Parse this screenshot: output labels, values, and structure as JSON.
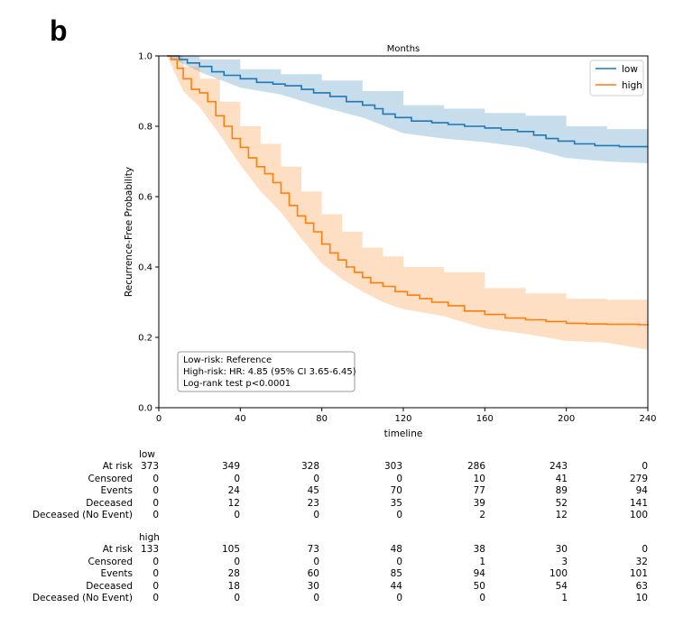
{
  "panel_label": "b",
  "chart_data": {
    "type": "line",
    "title": "Months",
    "xlabel": "timeline",
    "ylabel": "Recurrence-Free Probability",
    "xlim": [
      0,
      240
    ],
    "ylim": [
      0,
      1
    ],
    "xticks": [
      0,
      40,
      80,
      120,
      160,
      200,
      240
    ],
    "xtick_labels": [
      "0",
      "40",
      "80",
      "120",
      "160",
      "200",
      "240"
    ],
    "yticks": [
      0,
      0.2,
      0.4,
      0.6,
      0.8,
      1.0
    ],
    "ytick_labels": [
      "0.0",
      "0.2",
      "0.4",
      "0.6",
      "0.8",
      "1.0"
    ],
    "legend_position": "top-right",
    "series": [
      {
        "name": "low",
        "color": "#1f77b4",
        "ci_color": "#1f77b4",
        "points": [
          [
            4,
            1.0
          ],
          [
            10,
            0.99
          ],
          [
            14,
            0.98
          ],
          [
            20,
            0.97
          ],
          [
            26,
            0.955
          ],
          [
            32,
            0.945
          ],
          [
            40,
            0.935
          ],
          [
            48,
            0.925
          ],
          [
            56,
            0.92
          ],
          [
            62,
            0.915
          ],
          [
            70,
            0.905
          ],
          [
            76,
            0.895
          ],
          [
            84,
            0.885
          ],
          [
            92,
            0.87
          ],
          [
            100,
            0.86
          ],
          [
            106,
            0.85
          ],
          [
            110,
            0.835
          ],
          [
            116,
            0.825
          ],
          [
            124,
            0.815
          ],
          [
            134,
            0.81
          ],
          [
            142,
            0.805
          ],
          [
            150,
            0.8
          ],
          [
            160,
            0.795
          ],
          [
            168,
            0.79
          ],
          [
            176,
            0.785
          ],
          [
            184,
            0.775
          ],
          [
            190,
            0.765
          ],
          [
            196,
            0.758
          ],
          [
            204,
            0.75
          ],
          [
            214,
            0.745
          ],
          [
            226,
            0.742
          ],
          [
            240,
            0.742
          ]
        ],
        "ci_lower": [
          [
            4,
            1.0
          ],
          [
            20,
            0.955
          ],
          [
            40,
            0.91
          ],
          [
            60,
            0.89
          ],
          [
            80,
            0.855
          ],
          [
            100,
            0.825
          ],
          [
            120,
            0.78
          ],
          [
            140,
            0.765
          ],
          [
            160,
            0.755
          ],
          [
            180,
            0.74
          ],
          [
            200,
            0.71
          ],
          [
            220,
            0.7
          ],
          [
            240,
            0.695
          ]
        ],
        "ci_upper": [
          [
            4,
            1.0
          ],
          [
            20,
            0.99
          ],
          [
            40,
            0.962
          ],
          [
            60,
            0.948
          ],
          [
            80,
            0.93
          ],
          [
            100,
            0.9
          ],
          [
            120,
            0.86
          ],
          [
            140,
            0.85
          ],
          [
            160,
            0.838
          ],
          [
            180,
            0.83
          ],
          [
            200,
            0.8
          ],
          [
            220,
            0.792
          ],
          [
            240,
            0.79
          ]
        ]
      },
      {
        "name": "high",
        "color": "#ff7f0e",
        "ci_color": "#ff7f0e",
        "points": [
          [
            4,
            1.0
          ],
          [
            6,
            0.99
          ],
          [
            9,
            0.965
          ],
          [
            12,
            0.935
          ],
          [
            16,
            0.905
          ],
          [
            20,
            0.895
          ],
          [
            24,
            0.87
          ],
          [
            28,
            0.83
          ],
          [
            32,
            0.8
          ],
          [
            36,
            0.765
          ],
          [
            40,
            0.74
          ],
          [
            44,
            0.71
          ],
          [
            48,
            0.685
          ],
          [
            52,
            0.665
          ],
          [
            56,
            0.64
          ],
          [
            60,
            0.61
          ],
          [
            64,
            0.575
          ],
          [
            68,
            0.545
          ],
          [
            72,
            0.525
          ],
          [
            76,
            0.5
          ],
          [
            80,
            0.465
          ],
          [
            84,
            0.44
          ],
          [
            88,
            0.42
          ],
          [
            92,
            0.4
          ],
          [
            96,
            0.385
          ],
          [
            100,
            0.37
          ],
          [
            104,
            0.355
          ],
          [
            110,
            0.345
          ],
          [
            116,
            0.33
          ],
          [
            122,
            0.32
          ],
          [
            128,
            0.31
          ],
          [
            134,
            0.3
          ],
          [
            142,
            0.29
          ],
          [
            150,
            0.275
          ],
          [
            160,
            0.265
          ],
          [
            170,
            0.255
          ],
          [
            180,
            0.25
          ],
          [
            190,
            0.245
          ],
          [
            200,
            0.24
          ],
          [
            210,
            0.238
          ],
          [
            220,
            0.237
          ],
          [
            236,
            0.236
          ],
          [
            240,
            0.234
          ]
        ],
        "ci_lower": [
          [
            4,
            1.0
          ],
          [
            12,
            0.9
          ],
          [
            20,
            0.855
          ],
          [
            30,
            0.775
          ],
          [
            40,
            0.69
          ],
          [
            50,
            0.615
          ],
          [
            60,
            0.555
          ],
          [
            70,
            0.48
          ],
          [
            80,
            0.41
          ],
          [
            90,
            0.365
          ],
          [
            100,
            0.33
          ],
          [
            110,
            0.3
          ],
          [
            120,
            0.28
          ],
          [
            140,
            0.26
          ],
          [
            160,
            0.225
          ],
          [
            180,
            0.21
          ],
          [
            200,
            0.19
          ],
          [
            220,
            0.185
          ],
          [
            240,
            0.165
          ]
        ],
        "ci_upper": [
          [
            4,
            1.0
          ],
          [
            12,
            0.97
          ],
          [
            20,
            0.935
          ],
          [
            30,
            0.87
          ],
          [
            40,
            0.8
          ],
          [
            50,
            0.75
          ],
          [
            60,
            0.685
          ],
          [
            70,
            0.615
          ],
          [
            80,
            0.55
          ],
          [
            90,
            0.5
          ],
          [
            100,
            0.455
          ],
          [
            110,
            0.43
          ],
          [
            120,
            0.4
          ],
          [
            140,
            0.385
          ],
          [
            160,
            0.34
          ],
          [
            180,
            0.325
          ],
          [
            200,
            0.31
          ],
          [
            220,
            0.307
          ],
          [
            240,
            0.305
          ]
        ]
      }
    ],
    "annotation": {
      "lines": [
        "Low-risk: Reference",
        "High-risk: HR: 4.85 (95% CI 3.65-6.45)",
        "Log-rank test p<0.0001"
      ],
      "position": "bottom-left"
    }
  },
  "risk_table": {
    "time_points": [
      0,
      40,
      80,
      120,
      160,
      200,
      240
    ],
    "row_labels": [
      "At risk",
      "Censored",
      "Events",
      "Deceased",
      "Deceased (No Event)"
    ],
    "groups": [
      {
        "name": "low",
        "rows": [
          [
            "373",
            "349",
            "328",
            "303",
            "286",
            "243",
            "0"
          ],
          [
            "0",
            "0",
            "0",
            "0",
            "10",
            "41",
            "279"
          ],
          [
            "0",
            "24",
            "45",
            "70",
            "77",
            "89",
            "94"
          ],
          [
            "0",
            "12",
            "23",
            "35",
            "39",
            "52",
            "141"
          ],
          [
            "0",
            "0",
            "0",
            "0",
            "2",
            "12",
            "100"
          ]
        ]
      },
      {
        "name": "high",
        "rows": [
          [
            "133",
            "105",
            "73",
            "48",
            "38",
            "30",
            "0"
          ],
          [
            "0",
            "0",
            "0",
            "0",
            "1",
            "3",
            "32"
          ],
          [
            "0",
            "28",
            "60",
            "85",
            "94",
            "100",
            "101"
          ],
          [
            "0",
            "18",
            "30",
            "44",
            "50",
            "54",
            "63"
          ],
          [
            "0",
            "0",
            "0",
            "0",
            "0",
            "1",
            "10"
          ]
        ]
      }
    ]
  }
}
